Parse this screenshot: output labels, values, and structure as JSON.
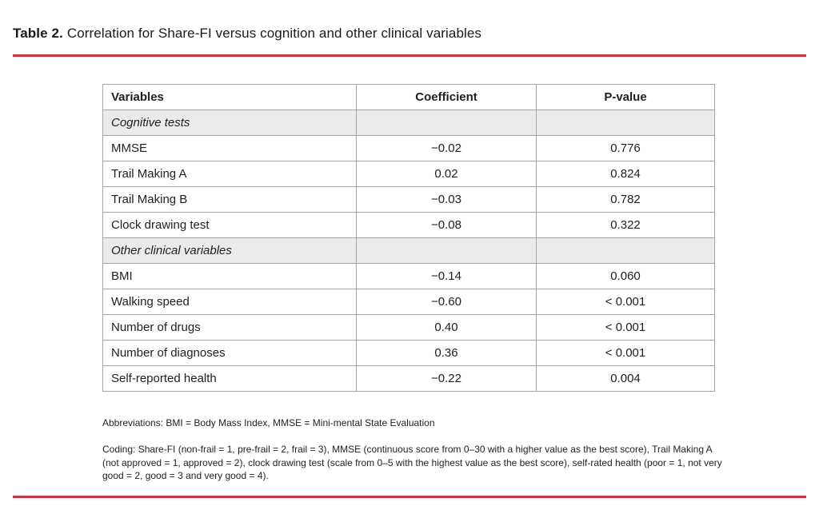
{
  "title": {
    "label": "Table 2.",
    "text": "Correlation for Share-FI versus cognition and other clinical variables"
  },
  "table": {
    "columns": {
      "variables": "Variables",
      "coefficient": "Coefficient",
      "p_value": "P-value"
    },
    "rows": [
      {
        "type": "section",
        "variable": "Cognitive tests",
        "coefficient": "",
        "p_value": ""
      },
      {
        "type": "data",
        "variable": "MMSE",
        "coefficient": "−0.02",
        "p_value": "0.776"
      },
      {
        "type": "data",
        "variable": "Trail Making A",
        "coefficient": "0.02",
        "p_value": "0.824"
      },
      {
        "type": "data",
        "variable": "Trail Making B",
        "coefficient": "−0.03",
        "p_value": "0.782"
      },
      {
        "type": "data",
        "variable": "Clock drawing test",
        "coefficient": "−0.08",
        "p_value": "0.322"
      },
      {
        "type": "section",
        "variable": "Other clinical variables",
        "coefficient": "",
        "p_value": ""
      },
      {
        "type": "data",
        "variable": "BMI",
        "coefficient": "−0.14",
        "p_value": "0.060"
      },
      {
        "type": "data",
        "variable": "Walking speed",
        "coefficient": "−0.60",
        "p_value": "< 0.001"
      },
      {
        "type": "data",
        "variable": "Number of drugs",
        "coefficient": "0.40",
        "p_value": "< 0.001"
      },
      {
        "type": "data",
        "variable": "Number of diagnoses",
        "coefficient": "0.36",
        "p_value": "< 0.001"
      },
      {
        "type": "data",
        "variable": "Self-reported health",
        "coefficient": "−0.22",
        "p_value": "0.004"
      }
    ]
  },
  "footnotes": {
    "abbreviations": "Abbreviations: BMI = Body Mass Index, MMSE = Mini-mental State Evaluation",
    "coding": "Coding: Share-FI (non-frail = 1, pre-frail = 2, frail = 3), MMSE (continuous score from 0–30 with a higher value as the best score), Trail Making A (not approved = 1, approved = 2), clock drawing test (scale from 0–5 with the highest value as the best score), self-rated health (poor = 1, not very good = 2, good = 3 and very good = 4)."
  },
  "colors": {
    "accent_red": "#e8283b",
    "section_row_background": "#ebebeb",
    "table_border": "#a6a6a6",
    "text": "#1f1f1f"
  }
}
